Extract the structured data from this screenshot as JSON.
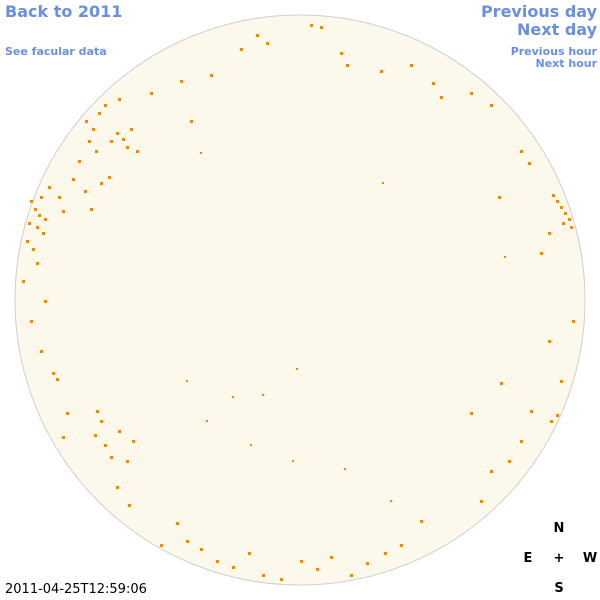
{
  "links": {
    "back_year": "Back to 2011",
    "facular_data": "See facular data",
    "previous_day": "Previous day",
    "next_day": "Next day",
    "previous_hour": "Previous hour",
    "next_hour": "Next hour"
  },
  "timestamp": "2011-04-25T12:59:06",
  "compass": {
    "north": "N",
    "east": "E",
    "center": "+",
    "west": "W",
    "south": "S"
  }
}
